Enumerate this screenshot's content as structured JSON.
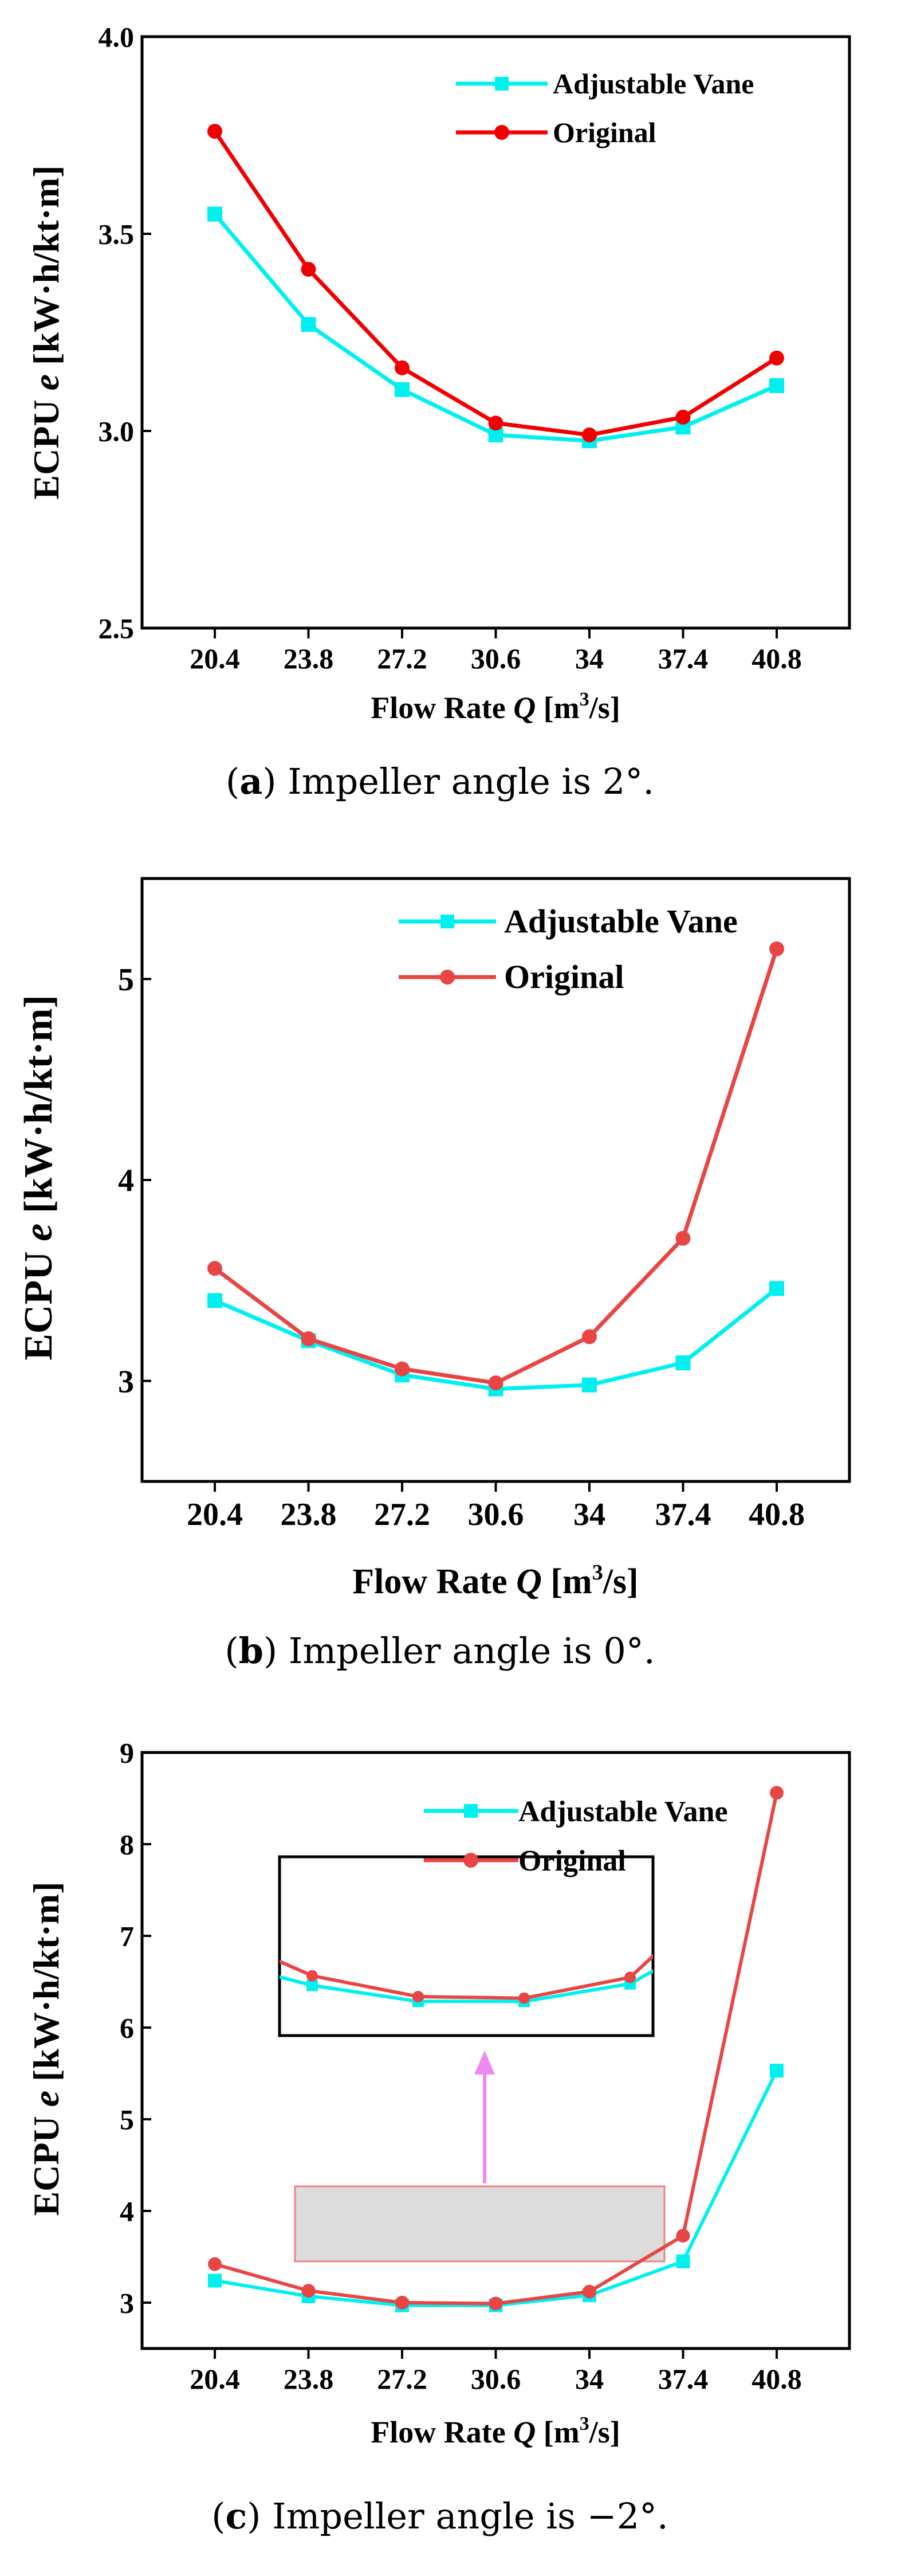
{
  "figure": {
    "panels": [
      {
        "caption_letter": "a",
        "caption_text": " Impeller angle is 2°."
      },
      {
        "caption_letter": "b",
        "caption_text": " Impeller angle is 0°."
      },
      {
        "caption_letter": "c",
        "caption_text": " Impeller angle is −2°."
      }
    ]
  },
  "colors": {
    "adjustable": "#00f0f0",
    "original_a": "#f00000",
    "original_bc": "#e84545",
    "axis": "#000000",
    "inset_highlight_fill": "#dcdcdc",
    "inset_highlight_stroke": "#f08080",
    "arrow": "#f088f0"
  },
  "chart_data": [
    {
      "type": "line",
      "panel": "a",
      "xlabel_prefix": "Flow Rate ",
      "xlabel_var": "Q",
      "xlabel_unit_open": " [m",
      "xlabel_unit_sup": "3",
      "xlabel_unit_close": "/s]",
      "ylabel_prefix": "ECPU ",
      "ylabel_var": "e",
      "ylabel_unit": " [kW·h/kt·m]",
      "categories": [
        "20.4",
        "23.8",
        "27.2",
        "30.6",
        "34",
        "37.4",
        "40.8"
      ],
      "ylim": [
        2.5,
        4.0
      ],
      "yticks": [
        2.5,
        3.0,
        3.5,
        4.0
      ],
      "ytick_labels": [
        "2.5",
        "3.0",
        "3.5",
        "4.0"
      ],
      "legend_position": "top-right",
      "series": [
        {
          "name": "Adjustable Vane",
          "marker": "square",
          "values": [
            3.55,
            3.27,
            3.105,
            2.99,
            2.975,
            3.01,
            3.115
          ]
        },
        {
          "name": "Original",
          "marker": "circle",
          "values": [
            3.76,
            3.41,
            3.16,
            3.02,
            2.99,
            3.035,
            3.185
          ]
        }
      ]
    },
    {
      "type": "line",
      "panel": "b",
      "xlabel_prefix": "Flow Rate ",
      "xlabel_var": "Q",
      "xlabel_unit_open": " [m",
      "xlabel_unit_sup": "3",
      "xlabel_unit_close": "/s]",
      "ylabel_prefix": "ECPU ",
      "ylabel_var": "e",
      "ylabel_unit": " [kW·h/kt·m]",
      "categories": [
        "20.4",
        "23.8",
        "27.2",
        "30.6",
        "34",
        "37.4",
        "40.8"
      ],
      "ylim": [
        2.5,
        5.5
      ],
      "yticks": [
        3,
        4,
        5
      ],
      "ytick_labels": [
        "3",
        "4",
        "5"
      ],
      "legend_position": "top-right",
      "series": [
        {
          "name": "Adjustable Vane",
          "marker": "square",
          "values": [
            3.4,
            3.2,
            3.03,
            2.96,
            2.98,
            3.09,
            3.46
          ]
        },
        {
          "name": "Original",
          "marker": "circle",
          "values": [
            3.56,
            3.21,
            3.06,
            2.99,
            3.22,
            3.71,
            5.15
          ]
        }
      ]
    },
    {
      "type": "line",
      "panel": "c",
      "xlabel_prefix": "Flow Rate ",
      "xlabel_var": "Q",
      "xlabel_unit_open": " [m",
      "xlabel_unit_sup": "3",
      "xlabel_unit_close": "/s]",
      "ylabel_prefix": "ECPU ",
      "ylabel_var": "e",
      "ylabel_unit": " [kW·h/kt·m]",
      "categories": [
        "20.4",
        "23.8",
        "27.2",
        "30.6",
        "34",
        "37.4",
        "40.8"
      ],
      "ylim": [
        2.5,
        9.0
      ],
      "yticks": [
        3,
        4,
        5,
        6,
        7,
        8,
        9
      ],
      "ytick_labels": [
        "3",
        "4",
        "5",
        "6",
        "7",
        "8",
        "9"
      ],
      "legend_position": "top-right",
      "inset": {
        "description": "zoomed view of the 23.8–34 region",
        "x_range": [
          "23.8",
          "34"
        ]
      },
      "series": [
        {
          "name": "Adjustable Vane",
          "marker": "square",
          "values": [
            3.24,
            3.07,
            2.97,
            2.97,
            3.08,
            3.45,
            5.53
          ]
        },
        {
          "name": "Original",
          "marker": "circle",
          "values": [
            3.42,
            3.13,
            3.0,
            2.99,
            3.12,
            3.73,
            8.56
          ]
        }
      ]
    }
  ]
}
